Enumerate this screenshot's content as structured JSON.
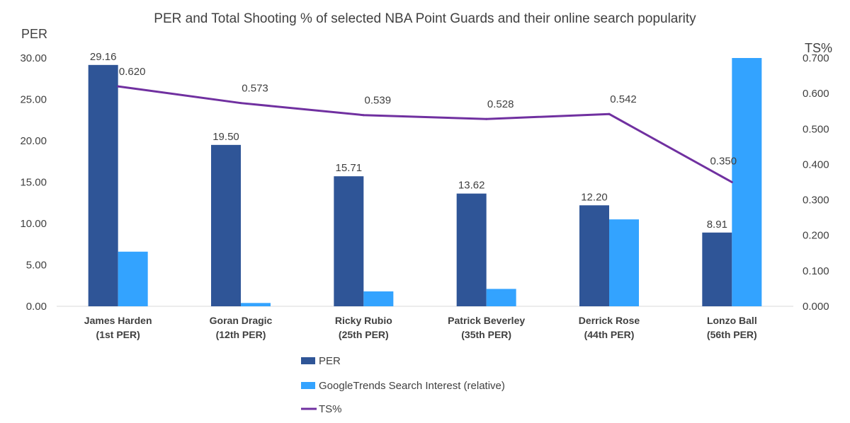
{
  "chart_data": {
    "type": "bar",
    "title": "PER and Total Shooting % of selected NBA Point Guards and their online search popularity",
    "ylabel_left": "PER",
    "ylabel_right": "TS%",
    "categories": [
      [
        "James Harden",
        "(1st PER)"
      ],
      [
        "Goran Dragic",
        "(12th PER)"
      ],
      [
        "Ricky Rubio",
        "(25th PER)"
      ],
      [
        "Patrick Beverley",
        "(35th PER)"
      ],
      [
        "Derrick Rose",
        "(44th PER)"
      ],
      [
        "Lonzo Ball",
        "(56th PER)"
      ]
    ],
    "y_left": {
      "min": 0,
      "max": 30,
      "ticks": [
        "0.00",
        "5.00",
        "10.00",
        "15.00",
        "20.00",
        "25.00",
        "30.00"
      ]
    },
    "y_right": {
      "min": 0,
      "max": 0.7,
      "ticks": [
        "0.000",
        "0.100",
        "0.200",
        "0.300",
        "0.400",
        "0.500",
        "0.600",
        "0.700"
      ]
    },
    "grid": false,
    "legend_position": "bottom",
    "series": [
      {
        "name": "PER",
        "kind": "bar",
        "axis": "left",
        "color": "#2F5597",
        "values": [
          29.16,
          19.5,
          15.71,
          13.62,
          12.2,
          8.91
        ],
        "labels": [
          "29.16",
          "19.50",
          "15.71",
          "13.62",
          "12.20",
          "8.91"
        ]
      },
      {
        "name": "GoogleTrends Search Interest (relative)",
        "kind": "bar",
        "axis": "left",
        "color": "#33A3FF",
        "values": [
          6.6,
          0.4,
          1.8,
          2.1,
          10.5,
          30.0
        ]
      },
      {
        "name": "TS%",
        "kind": "line",
        "axis": "right",
        "color": "#7030A0",
        "values": [
          0.62,
          0.573,
          0.539,
          0.528,
          0.542,
          0.35
        ],
        "labels": [
          "0.620",
          "0.573",
          "0.539",
          "0.528",
          "0.542",
          "0.350"
        ]
      }
    ]
  }
}
